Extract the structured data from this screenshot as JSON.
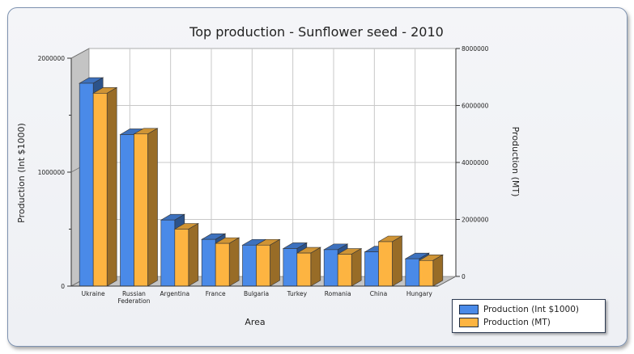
{
  "chart_data": {
    "type": "bar",
    "title": "Top production - Sunflower seed - 2010",
    "xlabel": "Area",
    "ylabel_left": "Production (Int $1000)",
    "ylabel_right": "Production (MT)",
    "categories": [
      "Ukraine",
      "Russian\nFederation",
      "Argentina",
      "France",
      "Bulgaria",
      "Turkey",
      "Romania",
      "China",
      "Hungary"
    ],
    "ylim_left": [
      0,
      2000000
    ],
    "ylim_right": [
      0,
      8000000
    ],
    "yticks_left": [
      0,
      1000000,
      2000000
    ],
    "yticks_right": [
      0,
      2000000,
      4000000,
      6000000,
      8000000
    ],
    "ytick_labels_left": [
      "0",
      "1000000",
      "2000000"
    ],
    "ytick_labels_right": [
      "0",
      "2000000",
      "4000000",
      "6000000",
      "8000000"
    ],
    "series": [
      {
        "name": "Production (Int $1000)",
        "axis": "left",
        "color": "#4a8ae8",
        "values": [
          1780000,
          1330000,
          580000,
          410000,
          360000,
          330000,
          320000,
          300000,
          240000
        ]
      },
      {
        "name": "Production (MT)",
        "axis": "right",
        "color": "#fdb441",
        "values": [
          6770000,
          5340000,
          2000000,
          1500000,
          1440000,
          1160000,
          1120000,
          1560000,
          900000
        ]
      }
    ],
    "grid": true,
    "legend_position": "bottom-right"
  }
}
